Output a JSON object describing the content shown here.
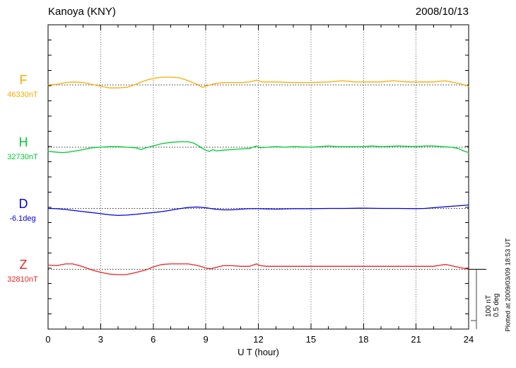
{
  "header": {
    "title": "Kanoya (KNY)",
    "date": "2008/10/13"
  },
  "chart_data": {
    "type": "line",
    "title": "Kanoya (KNY)",
    "date": "2008/10/13",
    "xlabel": "U T (hour)",
    "xlim": [
      0,
      24
    ],
    "x_major_ticks": [
      0,
      3,
      6,
      9,
      12,
      15,
      18,
      21,
      24
    ],
    "x_minor_step": 1,
    "grid": "vertical dotted lines at 3-hour intervals; dotted horizontal baseline per component",
    "legend_position": "left-of-plot component labels",
    "plotted_note": "Plotted at 2009/03/09 18:53 UT",
    "scale_bar": {
      "nt": "100 nT",
      "deg": "0.5 deg",
      "nT_value": 100,
      "deg_value": 0.5
    },
    "series": [
      {
        "name": "F",
        "unit": "nT",
        "baseline_label": "46330nT",
        "baseline": 46330,
        "color": "#FFAA00",
        "points": [
          [
            0,
            46330
          ],
          [
            0.5,
            46331
          ],
          [
            1,
            46334
          ],
          [
            1.5,
            46335
          ],
          [
            2,
            46334
          ],
          [
            2.5,
            46331
          ],
          [
            3,
            46328
          ],
          [
            3.5,
            46325
          ],
          [
            4,
            46325
          ],
          [
            4.5,
            46326
          ],
          [
            5,
            46331
          ],
          [
            5.5,
            46337
          ],
          [
            6,
            46341
          ],
          [
            6.5,
            46343
          ],
          [
            7,
            46343
          ],
          [
            7.5,
            46342
          ],
          [
            8,
            46337
          ],
          [
            8.5,
            46331
          ],
          [
            8.8,
            46326
          ],
          [
            9,
            46328
          ],
          [
            9.5,
            46332
          ],
          [
            10,
            46334
          ],
          [
            10.5,
            46334
          ],
          [
            11,
            46334
          ],
          [
            11.5,
            46335
          ],
          [
            11.9,
            46338
          ],
          [
            12.2,
            46335
          ],
          [
            13,
            46335
          ],
          [
            14,
            46334
          ],
          [
            15,
            46334
          ],
          [
            16,
            46335
          ],
          [
            16.8,
            46337
          ],
          [
            17.5,
            46335
          ],
          [
            18,
            46335
          ],
          [
            19,
            46335
          ],
          [
            19.7,
            46337
          ],
          [
            20.5,
            46335
          ],
          [
            21.5,
            46335
          ],
          [
            22,
            46335
          ],
          [
            22.6,
            46337
          ],
          [
            23,
            46335
          ],
          [
            23.5,
            46332
          ],
          [
            24,
            46328
          ]
        ]
      },
      {
        "name": "H",
        "unit": "nT",
        "baseline_label": "32730nT",
        "baseline": 32730,
        "color": "#00CC33",
        "points": [
          [
            0,
            32723
          ],
          [
            0.4,
            32722
          ],
          [
            0.8,
            32721
          ],
          [
            1.2,
            32722
          ],
          [
            1.6,
            32724
          ],
          [
            2,
            32726
          ],
          [
            2.5,
            32729
          ],
          [
            3,
            32730
          ],
          [
            3.5,
            32731
          ],
          [
            4,
            32731
          ],
          [
            4.5,
            32730
          ],
          [
            5,
            32729
          ],
          [
            5.3,
            32726
          ],
          [
            5.6,
            32729
          ],
          [
            6,
            32732
          ],
          [
            6.5,
            32736
          ],
          [
            7,
            32738
          ],
          [
            7.5,
            32739
          ],
          [
            8,
            32739
          ],
          [
            8.3,
            32737
          ],
          [
            8.6,
            32732
          ],
          [
            8.8,
            32728
          ],
          [
            9,
            32725
          ],
          [
            9.2,
            32723
          ],
          [
            9.4,
            32726
          ],
          [
            9.6,
            32724
          ],
          [
            10,
            32725
          ],
          [
            10.5,
            32726
          ],
          [
            11,
            32727
          ],
          [
            11.5,
            32728
          ],
          [
            11.9,
            32732
          ],
          [
            12.1,
            32729
          ],
          [
            12.5,
            32730
          ],
          [
            13,
            32731
          ],
          [
            13.5,
            32730
          ],
          [
            14,
            32731
          ],
          [
            15,
            32730
          ],
          [
            15.5,
            32731
          ],
          [
            16,
            32732
          ],
          [
            16.5,
            32731
          ],
          [
            17,
            32731
          ],
          [
            18,
            32731
          ],
          [
            18.5,
            32732
          ],
          [
            19,
            32731
          ],
          [
            20,
            32732
          ],
          [
            21,
            32731
          ],
          [
            21.5,
            32732
          ],
          [
            22,
            32732
          ],
          [
            22.5,
            32731
          ],
          [
            23,
            32730
          ],
          [
            23.4,
            32728
          ],
          [
            23.7,
            32724
          ],
          [
            24,
            32721
          ]
        ]
      },
      {
        "name": "D",
        "unit": "deg",
        "baseline_label": "-6.1deg",
        "baseline": -6.1,
        "color": "#0000DD",
        "points": [
          [
            0,
            -6.1
          ],
          [
            0.5,
            -6.103
          ],
          [
            1,
            -6.11
          ],
          [
            1.5,
            -6.121
          ],
          [
            2,
            -6.131
          ],
          [
            2.5,
            -6.141
          ],
          [
            3,
            -6.151
          ],
          [
            3.5,
            -6.162
          ],
          [
            4,
            -6.168
          ],
          [
            4.5,
            -6.165
          ],
          [
            5,
            -6.158
          ],
          [
            5.5,
            -6.148
          ],
          [
            6,
            -6.141
          ],
          [
            6.5,
            -6.131
          ],
          [
            7,
            -6.117
          ],
          [
            7.5,
            -6.103
          ],
          [
            8,
            -6.09
          ],
          [
            8.5,
            -6.086
          ],
          [
            9,
            -6.093
          ],
          [
            9.5,
            -6.107
          ],
          [
            10,
            -6.114
          ],
          [
            10.5,
            -6.114
          ],
          [
            11,
            -6.107
          ],
          [
            11.5,
            -6.103
          ],
          [
            12,
            -6.103
          ],
          [
            13,
            -6.107
          ],
          [
            14,
            -6.103
          ],
          [
            15,
            -6.103
          ],
          [
            16,
            -6.1
          ],
          [
            17,
            -6.1
          ],
          [
            18,
            -6.097
          ],
          [
            19,
            -6.1
          ],
          [
            20,
            -6.1
          ],
          [
            21,
            -6.103
          ],
          [
            21.5,
            -6.1
          ],
          [
            22,
            -6.093
          ],
          [
            22.5,
            -6.086
          ],
          [
            23,
            -6.079
          ],
          [
            23.5,
            -6.073
          ],
          [
            24,
            -6.066
          ]
        ]
      },
      {
        "name": "Z",
        "unit": "nT",
        "baseline_label": "32810nT",
        "baseline": 32810,
        "color": "#EE2222",
        "points": [
          [
            0,
            32817
          ],
          [
            0.5,
            32816
          ],
          [
            1,
            32819
          ],
          [
            1.4,
            32819
          ],
          [
            1.8,
            32816
          ],
          [
            2.2,
            32812
          ],
          [
            2.6,
            32808
          ],
          [
            3,
            32805
          ],
          [
            3.5,
            32802
          ],
          [
            4,
            32801
          ],
          [
            4.4,
            32801
          ],
          [
            4.8,
            32803
          ],
          [
            5.2,
            32806
          ],
          [
            5.6,
            32809
          ],
          [
            6,
            32814
          ],
          [
            6.5,
            32818
          ],
          [
            7,
            32819
          ],
          [
            7.5,
            32819
          ],
          [
            8,
            32819
          ],
          [
            8.4,
            32817
          ],
          [
            8.7,
            32815
          ],
          [
            9,
            32812
          ],
          [
            9.3,
            32811
          ],
          [
            9.7,
            32814
          ],
          [
            10,
            32816
          ],
          [
            10.5,
            32816
          ],
          [
            11,
            32815
          ],
          [
            11.5,
            32815
          ],
          [
            11.9,
            32819
          ],
          [
            12.1,
            32816
          ],
          [
            12.5,
            32815
          ],
          [
            13,
            32815
          ],
          [
            14,
            32815
          ],
          [
            15,
            32815
          ],
          [
            16,
            32815
          ],
          [
            17,
            32815
          ],
          [
            18,
            32815
          ],
          [
            19,
            32815
          ],
          [
            20,
            32815
          ],
          [
            21,
            32815
          ],
          [
            22,
            32815
          ],
          [
            22.4,
            32817
          ],
          [
            22.7,
            32818
          ],
          [
            23,
            32816
          ],
          [
            23.5,
            32813
          ],
          [
            24,
            32810
          ]
        ]
      }
    ]
  }
}
